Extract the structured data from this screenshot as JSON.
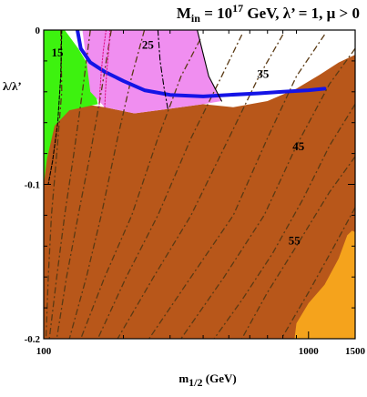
{
  "chart_data": {
    "type": "area",
    "title": {
      "prefix": "M",
      "prefix_sub": "in",
      "eq": " = 10",
      "exponent": "17",
      "rest": " GeV,  λ’ = 1, μ > 0"
    },
    "xlabel": {
      "main": "m",
      "sub": "1/2",
      "rest": " (GeV)"
    },
    "ylabel": "λ/λ’",
    "x_scale": "log",
    "xlim": [
      100,
      1500
    ],
    "ylim": [
      -0.2,
      0
    ],
    "x_ticks": [
      {
        "value": 100,
        "label": "100"
      },
      {
        "value": 1000,
        "label": "1000"
      },
      {
        "value": 1500,
        "label": "1500"
      }
    ],
    "y_ticks": [
      {
        "value": 0,
        "label": "0"
      },
      {
        "value": -0.1,
        "label": "-0.1"
      },
      {
        "value": -0.2,
        "label": "-0.2"
      }
    ],
    "colors": {
      "brown": "#b8571a",
      "orange": "#f5a31c",
      "green": "#3df20f",
      "pink": "#f08ef0",
      "blue": "#1414e6",
      "contour": "#5a3a14",
      "pink_line": "#e0148c",
      "black": "#000000"
    },
    "regions": [
      {
        "name": "brown",
        "color": "#b8571a",
        "boundary": [
          [
            100,
            -0.2
          ],
          [
            1500,
            -0.2
          ],
          [
            1500,
            -0.016
          ],
          [
            1300,
            -0.021
          ],
          [
            1100,
            -0.029
          ],
          [
            900,
            -0.038
          ],
          [
            700,
            -0.046
          ],
          [
            520,
            -0.05
          ],
          [
            400,
            -0.048
          ],
          [
            300,
            -0.051
          ],
          [
            220,
            -0.054
          ],
          [
            170,
            -0.05
          ],
          [
            140,
            -0.048
          ],
          [
            118,
            -0.05
          ],
          [
            105,
            -0.058
          ],
          [
            100,
            -0.07
          ]
        ]
      },
      {
        "name": "orange",
        "color": "#f5a31c",
        "boundary": [
          [
            885,
            -0.2
          ],
          [
            1500,
            -0.2
          ],
          [
            1500,
            -0.131
          ],
          [
            1460,
            -0.13
          ],
          [
            1400,
            -0.133
          ],
          [
            1300,
            -0.148
          ],
          [
            1150,
            -0.165
          ],
          [
            1000,
            -0.177
          ],
          [
            900,
            -0.19
          ]
        ]
      },
      {
        "name": "green",
        "color": "#3df20f",
        "boundary": [
          [
            100,
            0
          ],
          [
            120,
            0
          ],
          [
            135,
            -0.012
          ],
          [
            150,
            -0.025
          ],
          [
            160,
            -0.048
          ],
          [
            125,
            -0.052
          ],
          [
            110,
            -0.062
          ],
          [
            103,
            -0.083
          ],
          [
            100,
            -0.1
          ]
        ]
      },
      {
        "name": "pink",
        "color": "#f08ef0",
        "boundary": [
          [
            140,
            0
          ],
          [
            380,
            0
          ],
          [
            420,
            -0.03
          ],
          [
            470,
            -0.046
          ],
          [
            400,
            -0.048
          ],
          [
            300,
            -0.051
          ],
          [
            220,
            -0.054
          ],
          [
            170,
            -0.05
          ],
          [
            150,
            -0.04
          ],
          [
            145,
            -0.02
          ]
        ]
      }
    ],
    "lines": [
      {
        "name": "blue-boundary",
        "color": "#1414e6",
        "style": "solid",
        "points": [
          [
            134,
            0
          ],
          [
            138,
            -0.012
          ],
          [
            150,
            -0.021
          ],
          [
            170,
            -0.027
          ],
          [
            200,
            -0.033
          ],
          [
            240,
            -0.039
          ],
          [
            300,
            -0.042
          ],
          [
            400,
            -0.043
          ],
          [
            500,
            -0.042
          ],
          [
            650,
            -0.041
          ],
          [
            800,
            -0.04
          ],
          [
            1000,
            -0.039
          ],
          [
            1150,
            -0.038
          ]
        ]
      },
      {
        "name": "pink-dotted-1",
        "color": "#e0148c",
        "style": "dotted",
        "points": [
          [
            172,
            0
          ],
          [
            168,
            -0.013
          ],
          [
            165,
            -0.027
          ],
          [
            163,
            -0.04
          ],
          [
            162,
            -0.05
          ]
        ]
      },
      {
        "name": "pink-dotted-2",
        "color": "#e0148c",
        "style": "dotted",
        "points": [
          [
            178,
            0
          ],
          [
            176,
            -0.013
          ],
          [
            173,
            -0.027
          ],
          [
            171,
            -0.04
          ],
          [
            170,
            -0.05
          ]
        ]
      },
      {
        "name": "black-dashed",
        "color": "#000000",
        "style": "dashed",
        "points": [
          [
            117,
            0
          ],
          [
            116,
            -0.03
          ],
          [
            113,
            -0.06
          ],
          [
            108,
            -0.085
          ],
          [
            104,
            -0.1
          ]
        ]
      },
      {
        "name": "black-dashdot",
        "color": "#000000",
        "style": "dashdot",
        "points": [
          [
            270,
            0
          ],
          [
            275,
            -0.02
          ],
          [
            285,
            -0.038
          ],
          [
            295,
            -0.052
          ]
        ]
      },
      {
        "name": "black-line-boundary",
        "color": "#000000",
        "style": "solid",
        "points": [
          [
            380,
            0
          ],
          [
            420,
            -0.03
          ],
          [
            470,
            -0.046
          ]
        ]
      }
    ],
    "contours": [
      {
        "label": "15",
        "points": [
          [
            116,
            0
          ],
          [
            117,
            -0.04
          ],
          [
            112,
            -0.08
          ],
          [
            107,
            -0.12
          ],
          [
            104,
            -0.16
          ],
          [
            102,
            -0.2
          ]
        ]
      },
      {
        "label": "",
        "points": [
          [
            150,
            0
          ],
          [
            140,
            -0.04
          ],
          [
            130,
            -0.08
          ],
          [
            120,
            -0.12
          ],
          [
            112,
            -0.16
          ],
          [
            105,
            -0.2
          ]
        ]
      },
      {
        "label": "",
        "points": [
          [
            180,
            0
          ],
          [
            165,
            -0.04
          ],
          [
            150,
            -0.08
          ],
          [
            135,
            -0.12
          ],
          [
            122,
            -0.16
          ],
          [
            112,
            -0.2
          ]
        ]
      },
      {
        "label": "25",
        "points": [
          [
            240,
            0
          ],
          [
            215,
            -0.03
          ],
          [
            190,
            -0.07
          ],
          [
            165,
            -0.12
          ],
          [
            145,
            -0.16
          ],
          [
            125,
            -0.2
          ]
        ]
      },
      {
        "label": "",
        "points": [
          [
            390,
            -0.006
          ],
          [
            330,
            -0.03
          ],
          [
            270,
            -0.07
          ],
          [
            215,
            -0.12
          ],
          [
            170,
            -0.16
          ],
          [
            138,
            -0.2
          ]
        ]
      },
      {
        "label": "35",
        "points": [
          [
            560,
            -0.003
          ],
          [
            470,
            -0.03
          ],
          [
            360,
            -0.07
          ],
          [
            270,
            -0.12
          ],
          [
            205,
            -0.16
          ],
          [
            160,
            -0.2
          ]
        ]
      },
      {
        "label": "",
        "points": [
          [
            800,
            -0.003
          ],
          [
            650,
            -0.03
          ],
          [
            500,
            -0.07
          ],
          [
            360,
            -0.12
          ],
          [
            260,
            -0.16
          ],
          [
            190,
            -0.2
          ]
        ]
      },
      {
        "label": "",
        "points": [
          [
            1150,
            -0.003
          ],
          [
            900,
            -0.03
          ],
          [
            700,
            -0.07
          ],
          [
            520,
            -0.12
          ],
          [
            360,
            -0.16
          ],
          [
            250,
            -0.2
          ]
        ]
      },
      {
        "label": "45",
        "points": [
          [
            1500,
            -0.012
          ],
          [
            1200,
            -0.035
          ],
          [
            900,
            -0.075
          ],
          [
            680,
            -0.12
          ],
          [
            480,
            -0.16
          ],
          [
            330,
            -0.2
          ]
        ]
      },
      {
        "label": "",
        "points": [
          [
            1500,
            -0.048
          ],
          [
            1200,
            -0.075
          ],
          [
            950,
            -0.11
          ],
          [
            730,
            -0.145
          ],
          [
            560,
            -0.175
          ],
          [
            440,
            -0.2
          ]
        ]
      },
      {
        "label": "55",
        "points": [
          [
            1500,
            -0.082
          ],
          [
            1200,
            -0.105
          ],
          [
            900,
            -0.14
          ],
          [
            700,
            -0.17
          ],
          [
            560,
            -0.2
          ]
        ]
      },
      {
        "label": "",
        "points": [
          [
            1500,
            -0.115
          ],
          [
            1250,
            -0.14
          ],
          [
            1000,
            -0.17
          ],
          [
            790,
            -0.2
          ]
        ]
      }
    ],
    "contour_labels": [
      {
        "text": "15",
        "x": 107,
        "y": -0.017
      },
      {
        "text": "25",
        "x": 235,
        "y": -0.012
      },
      {
        "text": "35",
        "x": 640,
        "y": -0.031
      },
      {
        "text": "45",
        "x": 870,
        "y": -0.078
      },
      {
        "text": "55",
        "x": 840,
        "y": -0.139
      }
    ]
  }
}
